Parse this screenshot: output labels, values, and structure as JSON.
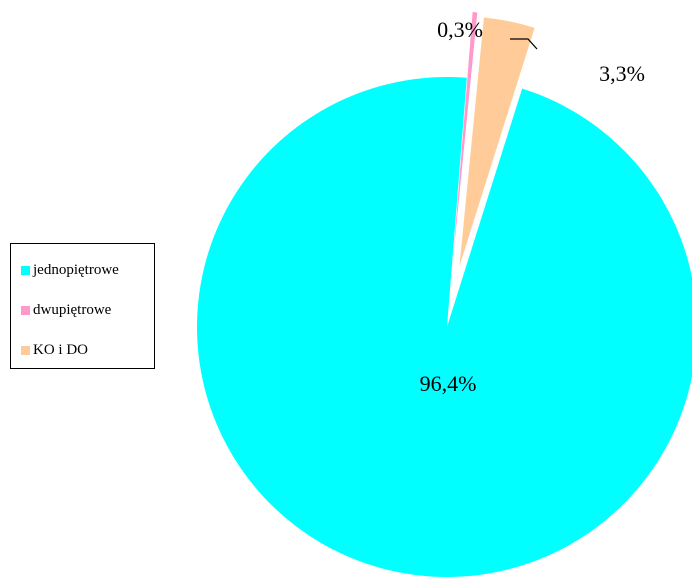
{
  "chart_data": {
    "type": "pie",
    "title": "",
    "slices": [
      {
        "name": "jednopiętrowe",
        "value": 96.4,
        "label": "96,4%",
        "color": "#00FFFF",
        "exploded": false
      },
      {
        "name": "dwupiętrowe",
        "value": 0.3,
        "label": "0,3%",
        "color": "#FF99CC",
        "exploded": true
      },
      {
        "name": "KO i DO",
        "value": 3.3,
        "label": "3,3%",
        "color": "#FFCC99",
        "exploded": true
      }
    ],
    "legend": {
      "position": "left",
      "items": [
        "jednopiętrowe",
        "dwupiętrowe",
        "KO i DO"
      ]
    }
  }
}
